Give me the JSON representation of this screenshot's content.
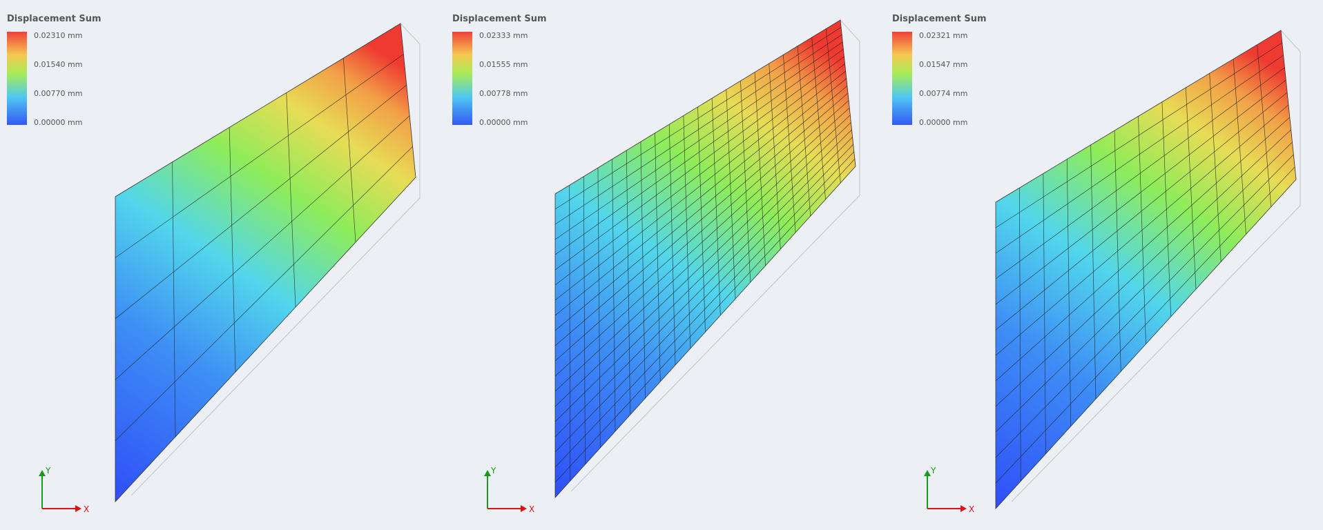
{
  "panels": [
    {
      "legend": {
        "title": "Displacement Sum",
        "labels": [
          "0.02310 mm",
          "0.01540 mm",
          "0.00770 mm",
          "0.00000 mm"
        ]
      },
      "axes": {
        "y": "Y",
        "x": "X"
      }
    },
    {
      "legend": {
        "title": "Displacement Sum",
        "labels": [
          "0.02333 mm",
          "0.01555 mm",
          "0.00778 mm",
          "0.00000 mm"
        ]
      },
      "axes": {
        "y": "Y",
        "x": "X"
      }
    },
    {
      "legend": {
        "title": "Displacement Sum",
        "labels": [
          "0.02321 mm",
          "0.01547 mm",
          "0.00774 mm",
          "0.00000 mm"
        ]
      },
      "axes": {
        "y": "Y",
        "x": "X"
      }
    }
  ]
}
